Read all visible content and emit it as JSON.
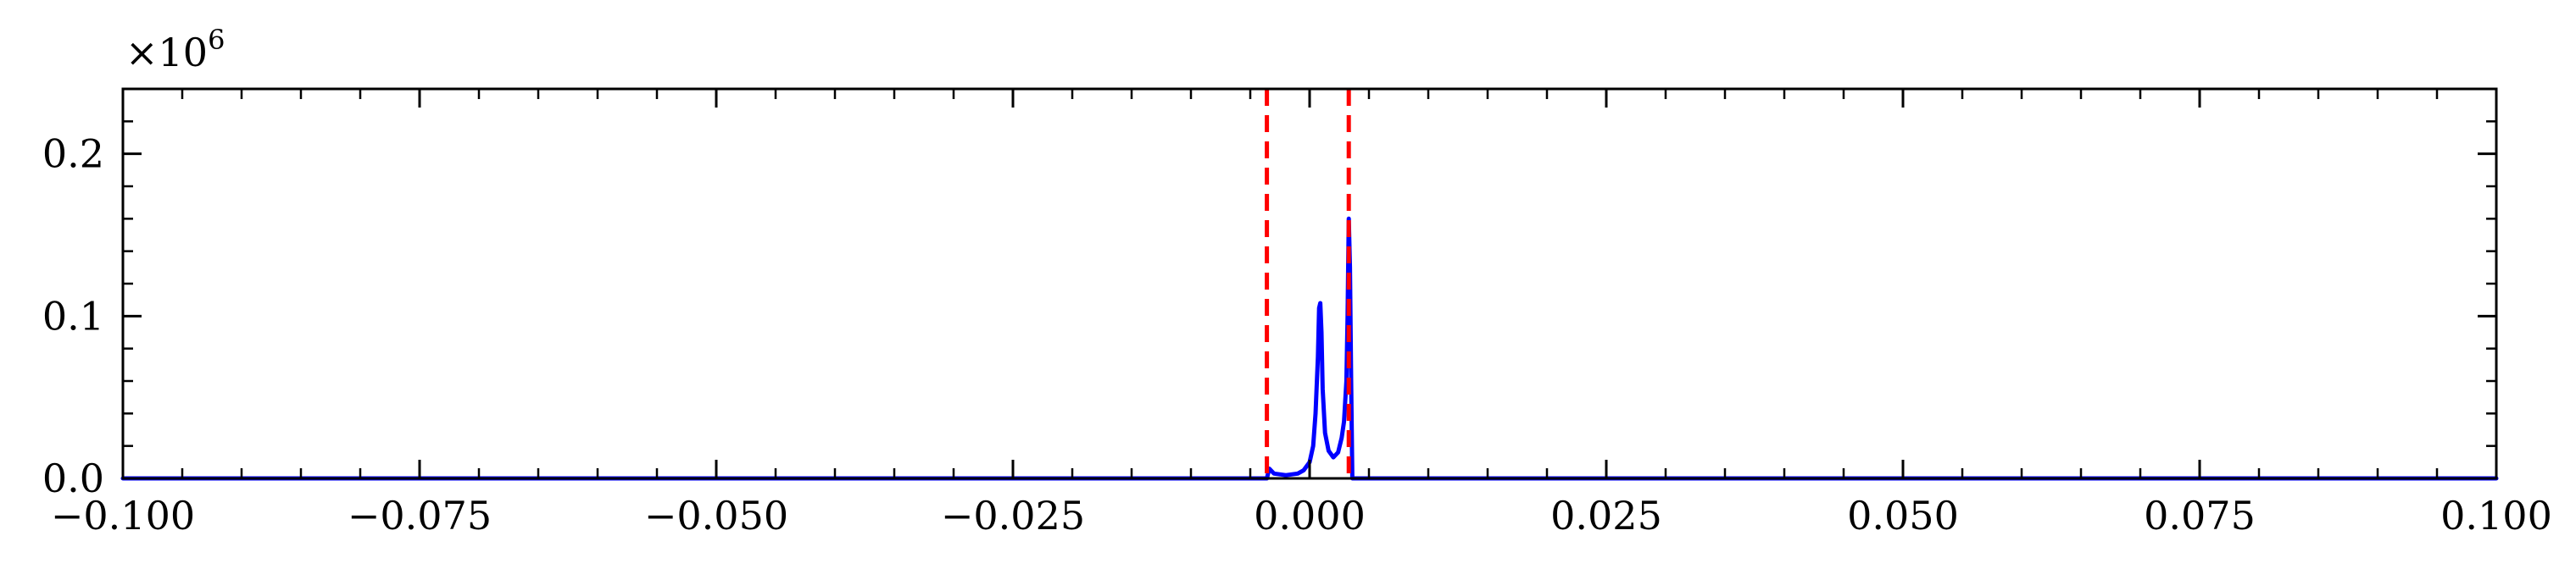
{
  "chart_data": {
    "type": "line",
    "title": "",
    "xlabel": "",
    "ylabel": "",
    "xlim": [
      -0.1,
      0.1
    ],
    "ylim": [
      0,
      0.24
    ],
    "y_multiplier": {
      "base": "×10",
      "exponent": "6"
    },
    "grid": false,
    "x_ticks": [
      {
        "value": -0.1,
        "label": "−0.100"
      },
      {
        "value": -0.075,
        "label": "−0.075"
      },
      {
        "value": -0.05,
        "label": "−0.050"
      },
      {
        "value": -0.025,
        "label": "−0.025"
      },
      {
        "value": 0.0,
        "label": "0.000"
      },
      {
        "value": 0.025,
        "label": "0.025"
      },
      {
        "value": 0.05,
        "label": "0.050"
      },
      {
        "value": 0.075,
        "label": "0.075"
      },
      {
        "value": 0.1,
        "label": "0.100"
      }
    ],
    "y_ticks": [
      {
        "value": 0.0,
        "label": "0.0"
      },
      {
        "value": 0.1,
        "label": "0.1"
      },
      {
        "value": 0.2,
        "label": "0.2"
      }
    ],
    "series": [
      {
        "color": "#0000ff",
        "style": "solid",
        "x": [
          -0.1,
          -0.0036,
          -0.0034,
          -0.003,
          -0.002,
          -0.001,
          -0.0005,
          0.0,
          0.0003,
          0.0005,
          0.0007,
          0.0008,
          0.0009,
          0.001,
          0.0011,
          0.0013,
          0.0016,
          0.002,
          0.0024,
          0.0027,
          0.0029,
          0.0031,
          0.0032,
          0.0033,
          0.0034,
          0.0035,
          0.0036,
          0.1
        ],
        "y": [
          0.0,
          0.0,
          0.006,
          0.003,
          0.002,
          0.003,
          0.005,
          0.01,
          0.02,
          0.04,
          0.075,
          0.105,
          0.108,
          0.09,
          0.055,
          0.028,
          0.017,
          0.013,
          0.016,
          0.025,
          0.035,
          0.06,
          0.1,
          0.16,
          0.13,
          0.06,
          0.0,
          0.0
        ]
      }
    ],
    "vlines": [
      {
        "x": -0.0036,
        "color": "#ff0000",
        "style": "dashed"
      },
      {
        "x": 0.0033,
        "color": "#ff0000",
        "style": "dashed"
      }
    ]
  }
}
